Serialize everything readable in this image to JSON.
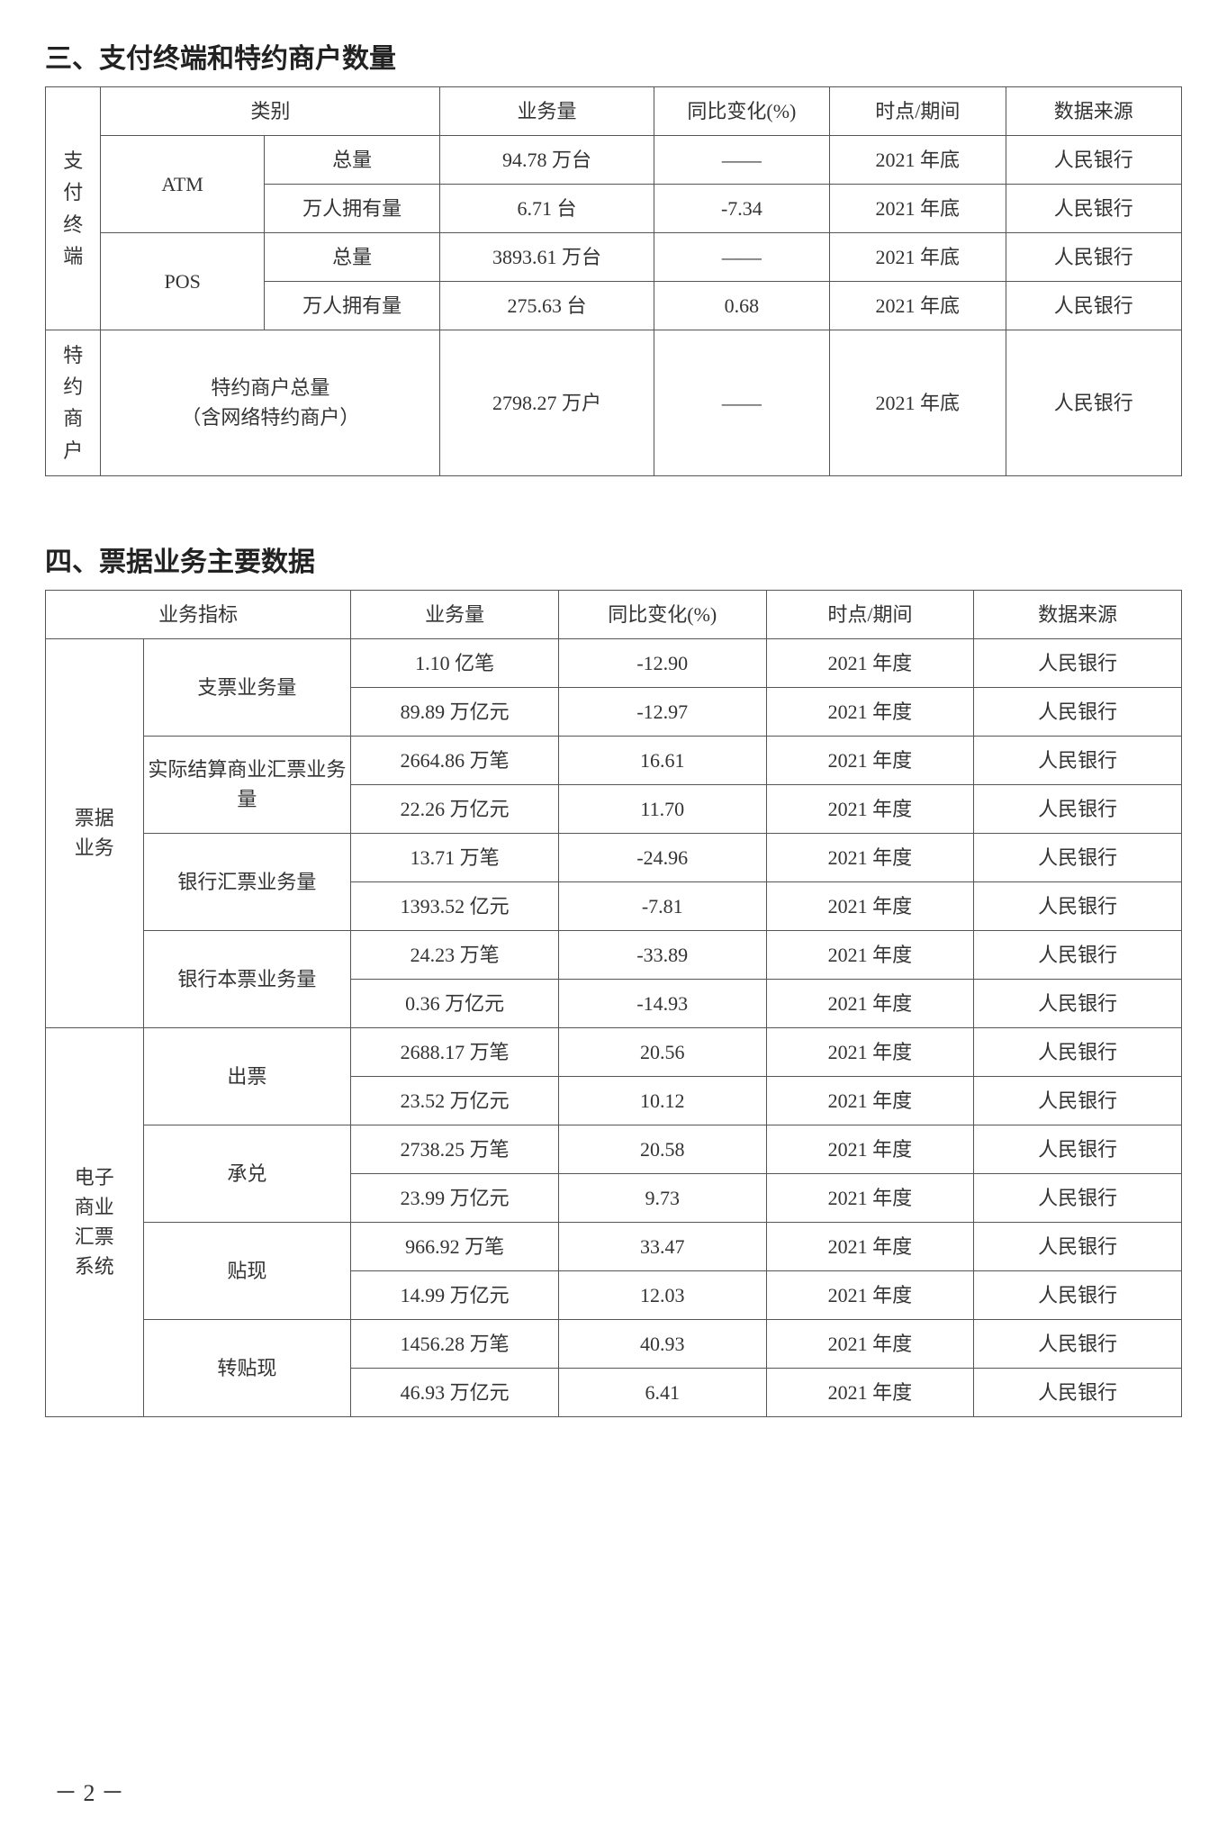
{
  "section3": {
    "title": "三、支付终端和特约商户数量",
    "headers": {
      "category": "类别",
      "volume": "业务量",
      "change": "同比变化(%)",
      "time": "时点/期间",
      "source": "数据来源"
    },
    "group1_label": "支付终端",
    "group2_label": "特约商户",
    "rows": [
      {
        "cat1": "ATM",
        "cat2": "总量",
        "vol": "94.78 万台",
        "chg": "——",
        "time": "2021 年底",
        "src": "人民银行"
      },
      {
        "cat1": "",
        "cat2": "万人拥有量",
        "vol": "6.71 台",
        "chg": "-7.34",
        "time": "2021 年底",
        "src": "人民银行"
      },
      {
        "cat1": "POS",
        "cat2": "总量",
        "vol": "3893.61 万台",
        "chg": "——",
        "time": "2021 年底",
        "src": "人民银行"
      },
      {
        "cat1": "",
        "cat2": "万人拥有量",
        "vol": "275.63 台",
        "chg": "0.68",
        "time": "2021 年底",
        "src": "人民银行"
      }
    ],
    "merchant_row": {
      "cat": "特约商户总量",
      "cat_sub": "（含网络特约商户）",
      "vol": "2798.27 万户",
      "chg": "——",
      "time": "2021 年底",
      "src": "人民银行"
    }
  },
  "section4": {
    "title": "四、票据业务主要数据",
    "headers": {
      "indicator": "业务指标",
      "volume": "业务量",
      "change": "同比变化(%)",
      "time": "时点/期间",
      "source": "数据来源"
    },
    "group1_label": "票据业务",
    "group2_label": "电子商业汇票系统",
    "g1": {
      "sub1": "支票业务量",
      "sub2": "实际结算商业汇票业务量",
      "sub3": "银行汇票业务量",
      "sub4": "银行本票业务量",
      "rows": [
        {
          "vol": "1.10 亿笔",
          "chg": "-12.90",
          "time": "2021 年度",
          "src": "人民银行"
        },
        {
          "vol": "89.89 万亿元",
          "chg": "-12.97",
          "time": "2021 年度",
          "src": "人民银行"
        },
        {
          "vol": "2664.86 万笔",
          "chg": "16.61",
          "time": "2021 年度",
          "src": "人民银行"
        },
        {
          "vol": "22.26 万亿元",
          "chg": "11.70",
          "time": "2021 年度",
          "src": "人民银行"
        },
        {
          "vol": "13.71 万笔",
          "chg": "-24.96",
          "time": "2021 年度",
          "src": "人民银行"
        },
        {
          "vol": "1393.52 亿元",
          "chg": "-7.81",
          "time": "2021 年度",
          "src": "人民银行"
        },
        {
          "vol": "24.23 万笔",
          "chg": "-33.89",
          "time": "2021 年度",
          "src": "人民银行"
        },
        {
          "vol": "0.36 万亿元",
          "chg": "-14.93",
          "time": "2021 年度",
          "src": "人民银行"
        }
      ]
    },
    "g2": {
      "sub1": "出票",
      "sub2": "承兑",
      "sub3": "贴现",
      "sub4": "转贴现",
      "rows": [
        {
          "vol": "2688.17 万笔",
          "chg": "20.56",
          "time": "2021 年度",
          "src": "人民银行"
        },
        {
          "vol": "23.52 万亿元",
          "chg": "10.12",
          "time": "2021 年度",
          "src": "人民银行"
        },
        {
          "vol": "2738.25 万笔",
          "chg": "20.58",
          "time": "2021 年度",
          "src": "人民银行"
        },
        {
          "vol": "23.99 万亿元",
          "chg": "9.73",
          "time": "2021 年度",
          "src": "人民银行"
        },
        {
          "vol": "966.92 万笔",
          "chg": "33.47",
          "time": "2021 年度",
          "src": "人民银行"
        },
        {
          "vol": "14.99 万亿元",
          "chg": "12.03",
          "time": "2021 年度",
          "src": "人民银行"
        },
        {
          "vol": "1456.28 万笔",
          "chg": "40.93",
          "time": "2021 年度",
          "src": "人民银行"
        },
        {
          "vol": "46.93 万亿元",
          "chg": "6.41",
          "time": "2021 年度",
          "src": "人民银行"
        }
      ]
    }
  },
  "page_number": "－ 2 －"
}
